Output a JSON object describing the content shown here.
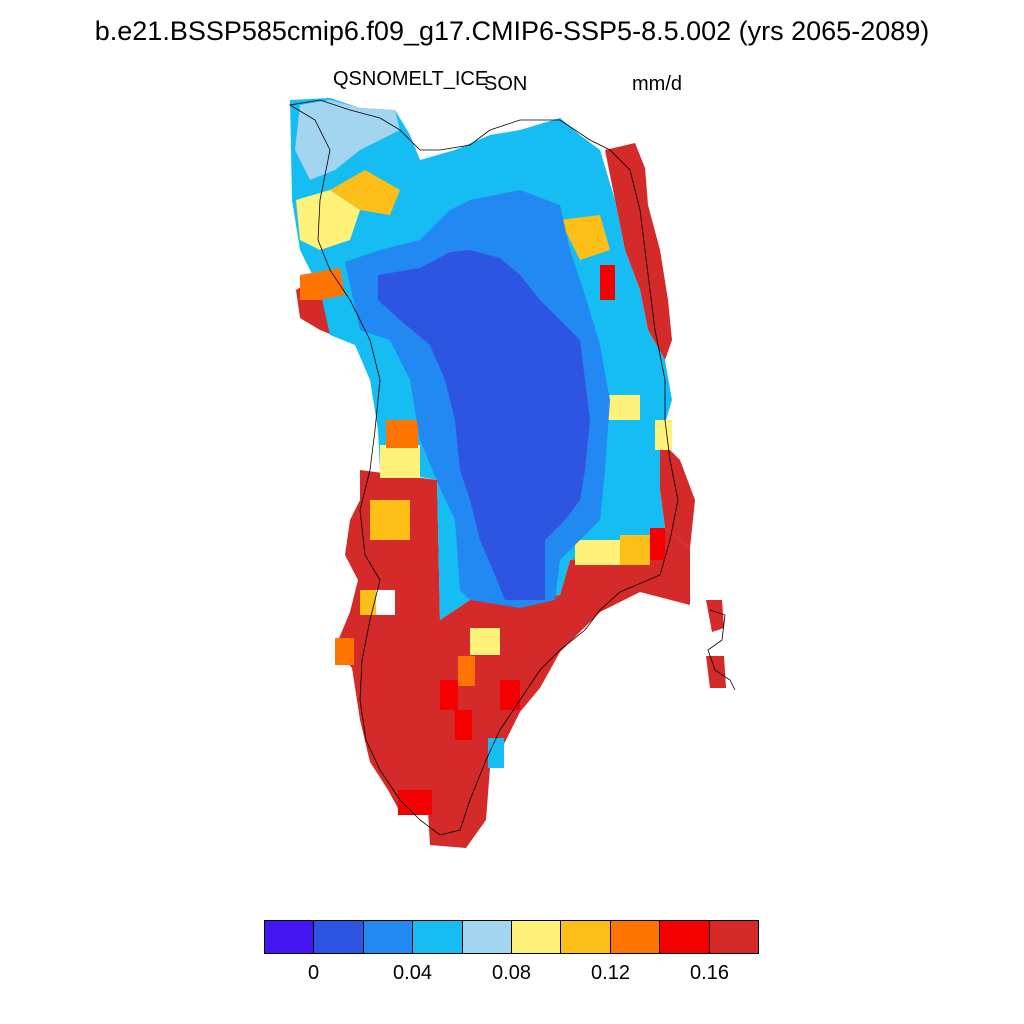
{
  "title": "b.e21.BSSP585cmip6.f09_g17.CMIP6-SSP5-8.5.002 (yrs 2065-2089)",
  "variable": "QSNOMELT_ICE",
  "season": "SON",
  "units": "mm/d",
  "colorbar": {
    "colors": [
      "#4316f2",
      "#2e55e2",
      "#2288f2",
      "#16bdf2",
      "#a3d4f0",
      "#fff27a",
      "#fcbf18",
      "#ff7300",
      "#f50000",
      "#d42a2a"
    ],
    "ticks": [
      "0",
      "0.04",
      "0.08",
      "0.12",
      "0.16"
    ]
  },
  "map_data": {
    "region": "Greenland",
    "dominant_values": {
      "interior_ice_sheet": "< 0.02 (blue)",
      "south_and_west_margin": "> 0.16 (dark red)",
      "coastal_ring": "0.04 - 0.16 mixed"
    }
  }
}
